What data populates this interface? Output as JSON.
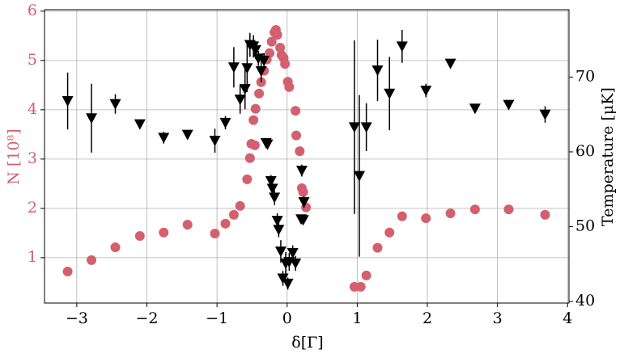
{
  "chart_data": {
    "type": "scatter",
    "xlabel": "δ[Γ]",
    "ylabel": "N [10⁸]",
    "y2label": "Temperature [μK]",
    "xlim": [
      -3.46,
      4.02
    ],
    "ylim": [
      0.08,
      6.03
    ],
    "y2lim": [
      39.8,
      79.0
    ],
    "xticks": [
      {
        "value": -3,
        "label": "−3"
      },
      {
        "value": -2,
        "label": "−2"
      },
      {
        "value": -1,
        "label": "−1"
      },
      0,
      1,
      2,
      3,
      4
    ],
    "yticks": [
      1,
      2,
      3,
      4,
      5,
      6
    ],
    "y2ticks": [
      40,
      50,
      60,
      70
    ],
    "grid": true,
    "series": [
      {
        "color": "#d35f6f",
        "marker": "circle",
        "x": [
          -3.13,
          -2.79,
          -2.45,
          -2.1,
          -1.76,
          -1.42,
          -1.03,
          -0.88,
          -0.76,
          -0.67,
          -0.57,
          -0.53,
          -0.51,
          -0.46,
          -0.48,
          -0.45,
          -0.4,
          -0.37,
          -0.33,
          -0.29,
          -0.25,
          -0.22,
          -0.18,
          -0.16,
          -0.14,
          -0.1,
          -0.08,
          -0.05,
          -0.03,
          0.01,
          0.03,
          0.12,
          0.13,
          0.18,
          0.21,
          0.23,
          0.27,
          0.96,
          1.05,
          1.13,
          1.29,
          1.46,
          1.64,
          1.98,
          2.33,
          2.68,
          3.16,
          3.68
        ],
        "values": [
          0.72,
          0.95,
          1.21,
          1.44,
          1.51,
          1.67,
          1.49,
          1.69,
          1.87,
          2.05,
          2.59,
          3.02,
          3.31,
          3.28,
          3.79,
          4.02,
          4.33,
          4.56,
          4.79,
          5.02,
          5.15,
          5.38,
          5.57,
          5.62,
          5.52,
          5.26,
          5.11,
          5.05,
          4.93,
          4.57,
          4.46,
          3.98,
          3.48,
          3.16,
          2.41,
          2.33,
          2.02,
          0.41,
          0.41,
          0.64,
          1.2,
          1.51,
          1.84,
          1.8,
          1.9,
          1.98,
          1.98,
          1.87
        ]
      },
      {
        "color": "#000000",
        "marker": "triangle-down",
        "axis": "y2",
        "x": [
          -3.13,
          -2.79,
          -2.45,
          -2.1,
          -1.76,
          -1.42,
          -1.03,
          -0.88,
          -0.76,
          -0.67,
          -0.6,
          -0.57,
          -0.53,
          -0.48,
          -0.45,
          -0.41,
          -0.37,
          -0.33,
          -0.3,
          -0.28,
          -0.23,
          -0.21,
          -0.18,
          -0.14,
          -0.12,
          -0.09,
          -0.06,
          -0.02,
          0.01,
          0.03,
          0.08,
          0.12,
          0.21,
          0.24,
          0.2,
          0.23,
          0.96,
          1.03,
          1.13,
          1.29,
          1.46,
          1.64,
          1.98,
          2.33,
          2.68,
          3.16,
          3.68
        ],
        "values": [
          66.8,
          64.5,
          66.4,
          63.7,
          61.9,
          62.3,
          61.5,
          63.9,
          71.3,
          67.0,
          68.4,
          71.2,
          74.3,
          74.1,
          73.6,
          72.5,
          70.8,
          72.2,
          61.2,
          61.0,
          56.1,
          55.1,
          53.9,
          50.8,
          49.6,
          46.7,
          43.1,
          45.1,
          42.4,
          45.3,
          46.5,
          45.1,
          57.5,
          53.3,
          51.0,
          50.9,
          63.3,
          56.8,
          63.3,
          70.9,
          67.8,
          74.1,
          68.2,
          71.8,
          65.8,
          66.3,
          65.0
        ],
        "errors": [
          3.8,
          4.6,
          1.3,
          0,
          0.8,
          0,
          1.6,
          0.9,
          2.7,
          1.9,
          2.7,
          3.2,
          1.6,
          1.5,
          1.2,
          1.0,
          1.5,
          1.0,
          0.3,
          0.3,
          0.8,
          1.0,
          1.0,
          1.0,
          1.0,
          1.5,
          1.0,
          1.5,
          0.8,
          1.2,
          1.0,
          1.0,
          0.8,
          0.8,
          0.5,
          0.5,
          11.6,
          10.8,
          3.2,
          4.1,
          4.9,
          2.2,
          0.9,
          0.5,
          0.6,
          0.5,
          1.1
        ]
      }
    ]
  }
}
